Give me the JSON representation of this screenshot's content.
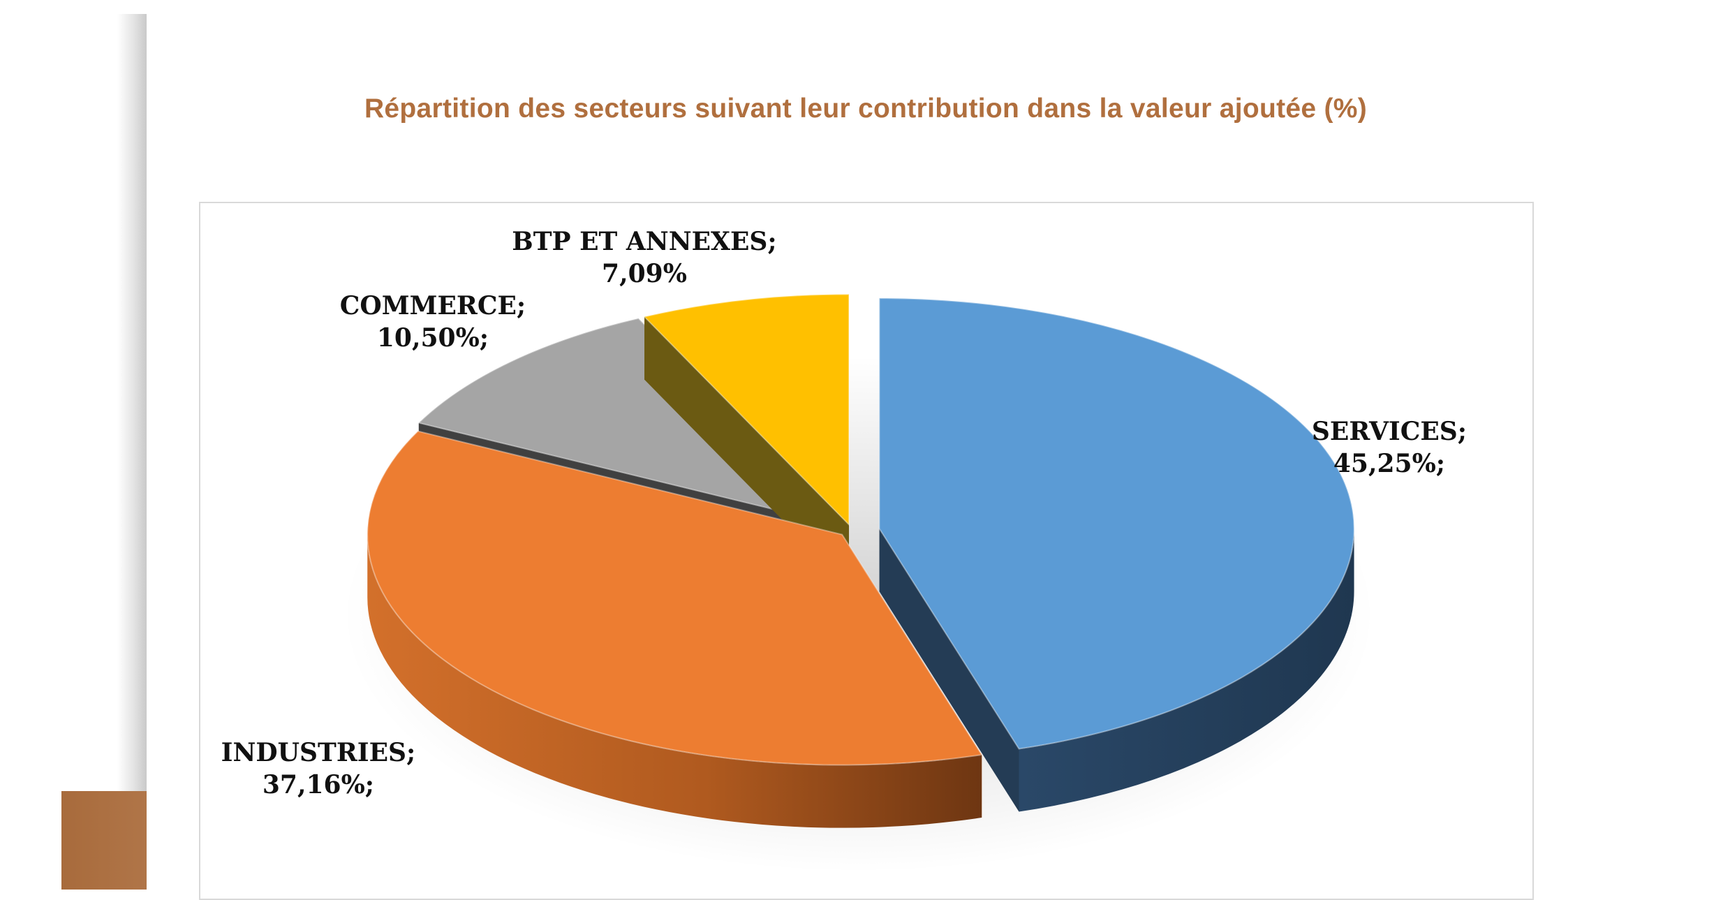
{
  "page": {
    "title": "Répartition des secteurs suivant leur contribution dans la valeur ajoutée (%)"
  },
  "chart_data": {
    "type": "pie",
    "title": "Répartition des secteurs suivant leur contribution dans la valeur ajoutée (%)",
    "slices": [
      {
        "name": "SERVICES",
        "value": 45.25,
        "label_lines": [
          "SERVICES;",
          "45,25%;"
        ],
        "color": "#5b9bd5",
        "side_color": "#243c55",
        "exploded": true
      },
      {
        "name": "INDUSTRIES",
        "value": 37.16,
        "label_lines": [
          "INDUSTRIES;",
          "37,16%;"
        ],
        "color": "#ed7d31",
        "side_color": "#b45a1e"
      },
      {
        "name": "COMMERCE",
        "value": 10.5,
        "label_lines": [
          "COMMERCE;",
          "10,50%;"
        ],
        "color": "#a5a5a5",
        "side_color": "#404040"
      },
      {
        "name": "BTP ET ANNEXES",
        "value": 7.09,
        "label_lines": [
          "BTP ET ANNEXES;",
          "7,09%"
        ],
        "color": "#ffc000",
        "side_color": "#6b5a12"
      }
    ],
    "style": "3d-exploded"
  }
}
